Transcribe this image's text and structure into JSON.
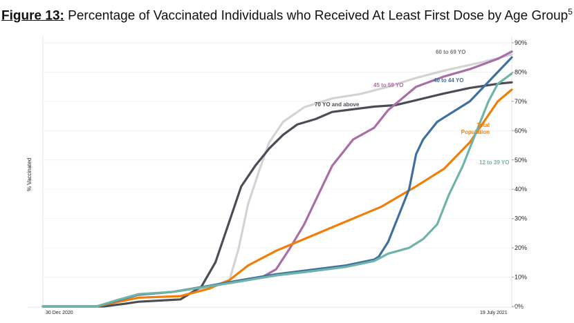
{
  "chart_data": {
    "type": "line",
    "title_prefix": "Figure 13:",
    "title": "Percentage of Vaccinated Individuals who Received At Least First Dose by Age Group",
    "title_footnote": "5",
    "ylabel": "% Vaccinated",
    "xlabel": "",
    "x_unit": "days since 30 Dec 2020",
    "xlim": [
      0,
      201
    ],
    "ylim": [
      0,
      90
    ],
    "x_tick_labels": [
      {
        "x": 0,
        "label": "30 Dec 2020"
      },
      {
        "x": 201,
        "label": "19 July 2021"
      }
    ],
    "y_ticks": [
      0,
      10,
      20,
      30,
      40,
      50,
      60,
      70,
      80,
      90
    ],
    "y_tick_labels": [
      "0%",
      "10%",
      "20%",
      "30%",
      "40%",
      "50%",
      "60%",
      "70%",
      "80%",
      "90%"
    ],
    "grid": true,
    "series": [
      {
        "name": "70 YO and above",
        "color": "#4a4d55",
        "x": [
          0,
          26,
          35,
          41,
          59,
          68,
          74,
          80,
          85,
          91,
          97,
          103,
          109,
          117,
          124,
          133,
          142,
          151,
          160,
          172,
          183,
          195,
          201
        ],
        "y": [
          0,
          0,
          0.9,
          1.6,
          2.4,
          6.8,
          15.1,
          29.2,
          40.9,
          48,
          53.9,
          58.6,
          62.1,
          64,
          66.4,
          67.3,
          68.2,
          68.7,
          70.4,
          72.7,
          74.6,
          76,
          76.5
        ]
      },
      {
        "name": "60 to 69 YO",
        "color": "#d3d3d3",
        "x": [
          0,
          23,
          32,
          41,
          59,
          71,
          80,
          84,
          88,
          93,
          97,
          103,
          112,
          124,
          136,
          148,
          160,
          172,
          189,
          201
        ],
        "y": [
          0,
          0,
          1.5,
          3,
          3.5,
          6.5,
          9,
          20,
          35,
          47,
          56,
          63,
          68,
          71,
          72.5,
          75,
          78,
          80.5,
          83.5,
          86
        ]
      },
      {
        "name": "45 to 59 YO",
        "color": "#a86fa6",
        "x": [
          0,
          23,
          32,
          41,
          56,
          71,
          82,
          94,
          100,
          106,
          112,
          118,
          124,
          133,
          142,
          148,
          154,
          160,
          172,
          183,
          195,
          201
        ],
        "y": [
          0,
          0,
          2,
          4,
          5,
          7,
          8.5,
          10,
          12.7,
          20,
          28,
          38,
          48,
          57,
          61,
          67,
          71,
          75,
          78.5,
          81,
          84.5,
          87
        ]
      },
      {
        "name": "40 to 44 YO",
        "color": "#3f6f9f",
        "x": [
          0,
          23,
          32,
          41,
          56,
          71,
          85,
          100,
          115,
          130,
          142,
          144,
          148,
          152,
          157,
          160,
          163,
          169,
          177,
          183,
          189,
          195,
          201
        ],
        "y": [
          0,
          0,
          2,
          4,
          5,
          7,
          9,
          11,
          12.5,
          14,
          16,
          17,
          22,
          30,
          40,
          52,
          57,
          63,
          67,
          70,
          75,
          80,
          85
        ]
      },
      {
        "name": "12 to 39 YO",
        "color": "#6fb4a8",
        "x": [
          0,
          23,
          32,
          41,
          56,
          71,
          85,
          100,
          115,
          130,
          142,
          148,
          157,
          163,
          169,
          174,
          180,
          186,
          191,
          195,
          201
        ],
        "y": [
          0,
          0,
          2.2,
          4.2,
          5,
          6.8,
          8.6,
          10.6,
          12,
          13.5,
          15.5,
          18,
          20,
          23,
          28,
          38,
          48,
          60,
          70,
          76,
          79.5
        ]
      },
      {
        "name": "Total Population",
        "color": "#f07f09",
        "x": [
          0,
          23,
          32,
          41,
          59,
          71,
          80,
          88,
          100,
          115,
          130,
          145,
          160,
          172,
          183,
          189,
          195,
          201
        ],
        "y": [
          0,
          0,
          1.5,
          3,
          3.5,
          6,
          9,
          14,
          19,
          24,
          29,
          34,
          41,
          47,
          56,
          63,
          70,
          74
        ]
      }
    ],
    "annotations": [
      {
        "text": "60 to 69 YO",
        "series": "60 to 69 YO"
      },
      {
        "text": "45 to 59 YO",
        "series": "45 to 59 YO"
      },
      {
        "text": "40 to 44 YO",
        "series": "40 to 44 YO"
      },
      {
        "text": "70 YO and above",
        "series": "70 YO and above"
      },
      {
        "text": "Total",
        "series": "Total Population"
      },
      {
        "text": "Population",
        "series": "Total Population"
      },
      {
        "text": "12 to 39 YO",
        "series": "12 to 39 YO"
      }
    ],
    "legend": "inline labels"
  }
}
